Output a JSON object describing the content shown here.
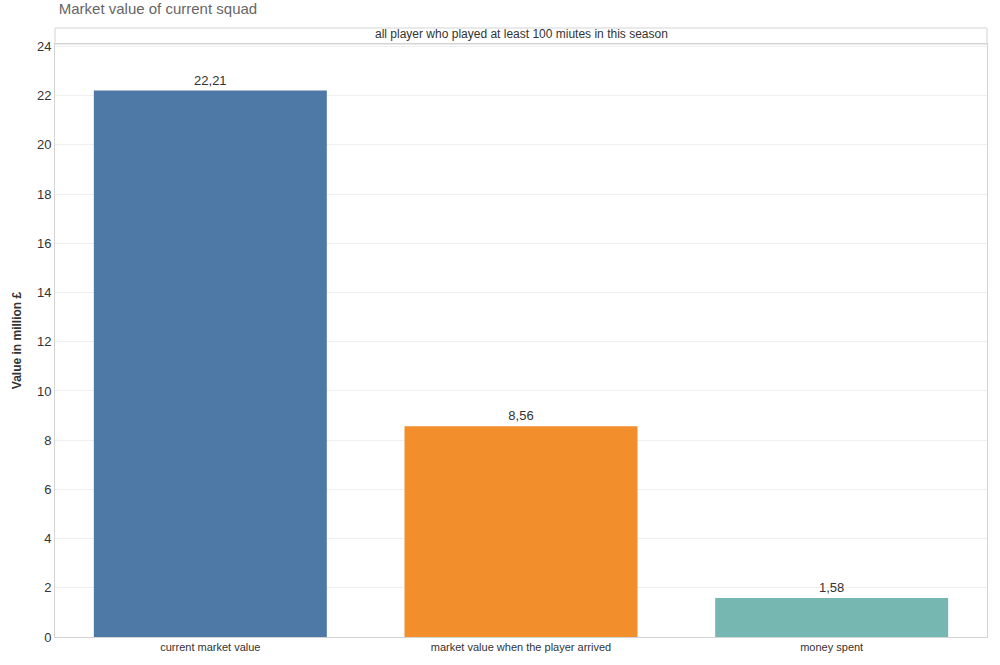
{
  "chart_data": {
    "type": "bar",
    "title": "Market value of current squad",
    "subtitle": "all player who played at least 100 miutes in this season",
    "y_label": "Value in million £",
    "categories": [
      "current market value",
      "market value when the player arrived",
      "money spent"
    ],
    "values": [
      22.21,
      8.56,
      1.58
    ],
    "value_labels": [
      "22,21",
      "8,56",
      "1,58"
    ],
    "colors": [
      "#4e79a7",
      "#f28e2b",
      "#76b7b2"
    ],
    "ylim": [
      0,
      24.1
    ],
    "yticks": [
      0,
      2,
      4,
      6,
      8,
      10,
      12,
      14,
      16,
      18,
      20,
      22,
      24
    ],
    "grid": true,
    "data_labels": true
  }
}
